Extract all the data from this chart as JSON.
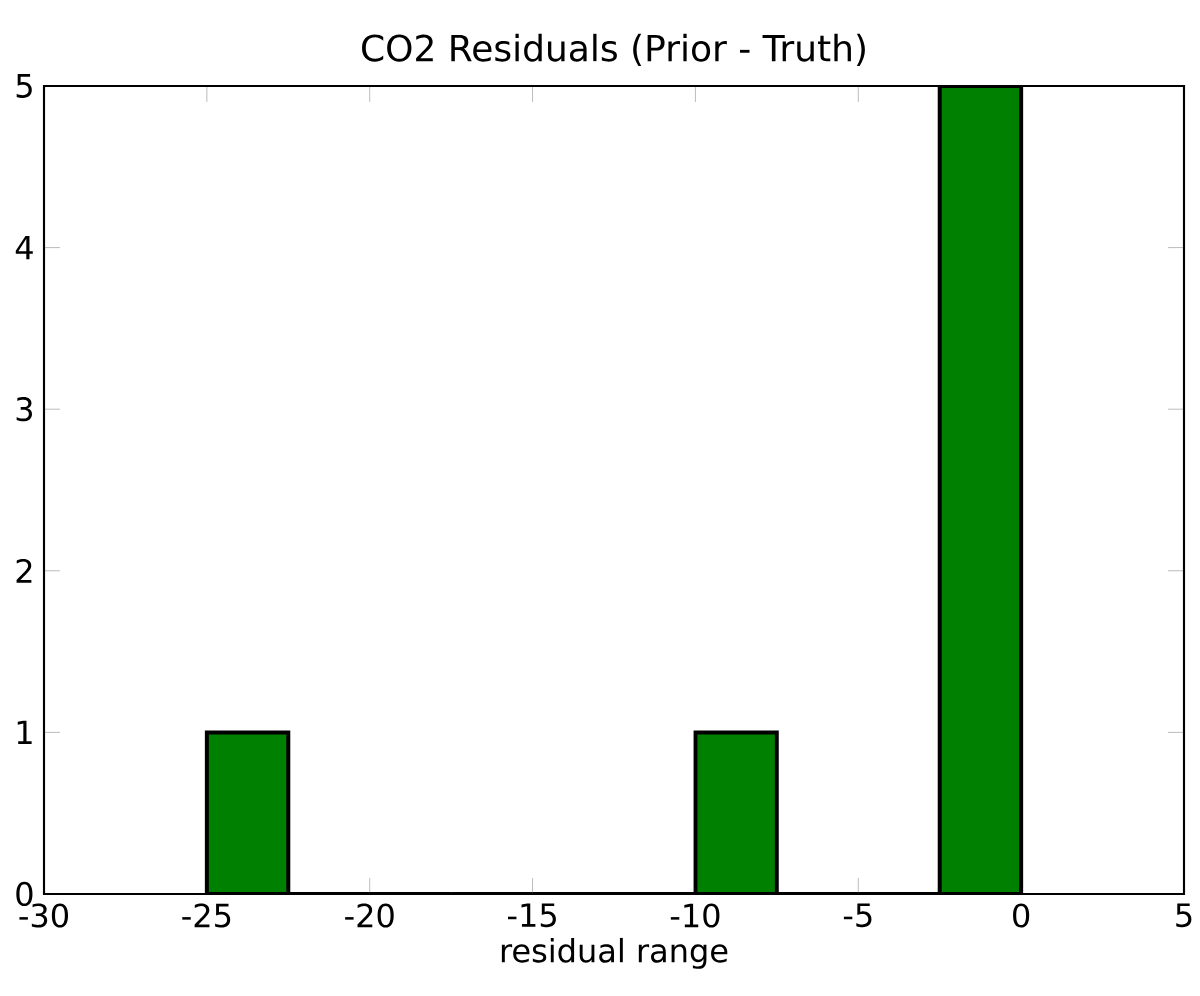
{
  "chart_data": {
    "type": "histogram",
    "title": "CO2 Residuals (Prior - Truth)",
    "xlabel": "residual range",
    "bins": [
      -25,
      -22.5,
      -20,
      -17.5,
      -15,
      -12.5,
      -10,
      -7.5,
      -5,
      -2.5,
      0
    ],
    "values": [
      1,
      0,
      0,
      0,
      0,
      0,
      1,
      0,
      0,
      5
    ],
    "color": "#008000",
    "xlim": [
      -30,
      5
    ],
    "xticks": [
      -30,
      -25,
      -20,
      -15,
      -10,
      -5,
      0,
      5
    ],
    "ylim": [
      0,
      5
    ],
    "yticks": [
      0,
      1,
      2,
      3,
      4,
      5
    ],
    "grid": false
  }
}
